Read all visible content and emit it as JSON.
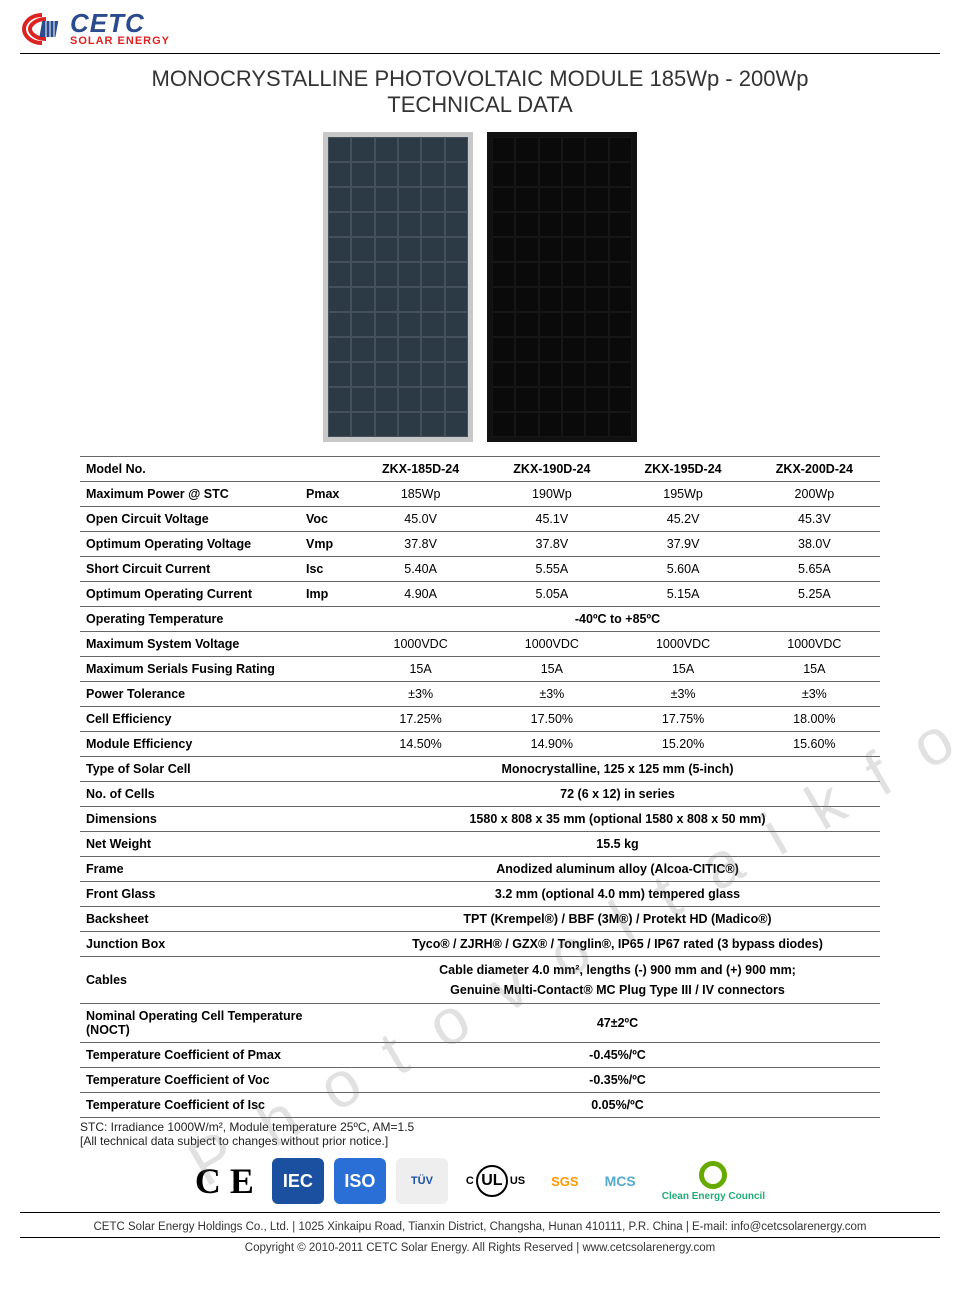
{
  "logo": {
    "brand": "CETC",
    "sub": "SOLAR ENERGY"
  },
  "title": {
    "l1": "MONOCRYSTALLINE PHOTOVOLTAIC MODULE 185Wp - 200Wp",
    "l2": "TECHNICAL DATA"
  },
  "headers": [
    "Model No.",
    "",
    "ZKX-185D-24",
    "ZKX-190D-24",
    "ZKX-195D-24",
    "ZKX-200D-24"
  ],
  "rows4": [
    {
      "label": "Maximum Power @ STC",
      "sym": "Pmax",
      "v": [
        "185Wp",
        "190Wp",
        "195Wp",
        "200Wp"
      ]
    },
    {
      "label": "Open Circuit Voltage",
      "sym": "Voc",
      "v": [
        "45.0V",
        "45.1V",
        "45.2V",
        "45.3V"
      ]
    },
    {
      "label": "Optimum Operating Voltage",
      "sym": "Vmp",
      "v": [
        "37.8V",
        "37.8V",
        "37.9V",
        "38.0V"
      ]
    },
    {
      "label": "Short Circuit Current",
      "sym": "Isc",
      "v": [
        "5.40A",
        "5.55A",
        "5.60A",
        "5.65A"
      ]
    },
    {
      "label": "Optimum Operating Current",
      "sym": "Imp",
      "v": [
        "4.90A",
        "5.05A",
        "5.15A",
        "5.25A"
      ]
    }
  ],
  "op_temp": {
    "label": "Operating Temperature",
    "v": "-40ºC to +85ºC"
  },
  "rows4b": [
    {
      "label": "Maximum System Voltage",
      "sym": "",
      "v": [
        "1000VDC",
        "1000VDC",
        "1000VDC",
        "1000VDC"
      ]
    },
    {
      "label": "Maximum Serials Fusing Rating",
      "sym": "",
      "v": [
        "15A",
        "15A",
        "15A",
        "15A"
      ]
    },
    {
      "label": "Power Tolerance",
      "sym": "",
      "v": [
        "±3%",
        "±3%",
        "±3%",
        "±3%"
      ]
    },
    {
      "label": "Cell Efficiency",
      "sym": "",
      "v": [
        "17.25%",
        "17.50%",
        "17.75%",
        "18.00%"
      ]
    },
    {
      "label": "Module Efficiency",
      "sym": "",
      "v": [
        "14.50%",
        "14.90%",
        "15.20%",
        "15.60%"
      ]
    }
  ],
  "rows_span": [
    {
      "label": "Type of Solar Cell",
      "v": "Monocrystalline, 125 x 125 mm (5-inch)"
    },
    {
      "label": "No. of Cells",
      "v": "72 (6 x 12) in series"
    },
    {
      "label": "Dimensions",
      "v": "1580 x 808 x 35 mm (optional 1580 x 808 x 50 mm)"
    },
    {
      "label": "Net Weight",
      "v": "15.5 kg"
    },
    {
      "label": "Frame",
      "v": "Anodized aluminum alloy (Alcoa-CITIC®)"
    },
    {
      "label": "Front Glass",
      "v": "3.2 mm (optional 4.0 mm) tempered glass"
    },
    {
      "label": "Backsheet",
      "v": "TPT (Krempel®) / BBF (3M®) / Protekt HD (Madico®)"
    },
    {
      "label": "Junction Box",
      "v": "Tyco® / ZJRH® / GZX® / Tonglin®, IP65 / IP67 rated (3 bypass diodes)"
    }
  ],
  "cables": {
    "label": "Cables",
    "l1": "Cable diameter 4.0 mm², lengths (-) 900 mm and (+) 900 mm;",
    "l2": "Genuine Multi-Contact® MC Plug Type III / IV connectors"
  },
  "rows_wide": [
    {
      "label": "Nominal Operating Cell Temperature (NOCT)",
      "v": "47±2ºC"
    },
    {
      "label": "Temperature Coefficient of Pmax",
      "v": "-0.45%/ºC"
    },
    {
      "label": "Temperature Coefficient of Voc",
      "v": "-0.35%/ºC"
    },
    {
      "label": "Temperature Coefficient of Isc",
      "v": "0.05%/ºC"
    }
  ],
  "notes": {
    "l1": "STC: Irradiance 1000W/m², Module temperature 25ºC, AM=1.5",
    "l2": "[All technical data subject to changes without prior notice.]"
  },
  "certs": {
    "ce": "C E",
    "iec": "IEC",
    "iso": "ISO",
    "tuv": "TÜV",
    "ul_c": "C",
    "ul": "UL",
    "ul_us": "US",
    "sgs": "SGS",
    "mcs": "MCS",
    "cec": "Clean Energy Council"
  },
  "footer": {
    "l1": "CETC Solar Energy Holdings Co., Ltd. | 1025 Xinkaipu Road, Tianxin District, Changsha, Hunan 410111, P.R. China | E-mail: info@cetcsolarenergy.com",
    "l2": "Copyright © 2010-2011 CETC Solar Energy. All Rights Reserved | www.cetcsolarenergy.com"
  },
  "watermark": "Photovoltaikforum.com"
}
